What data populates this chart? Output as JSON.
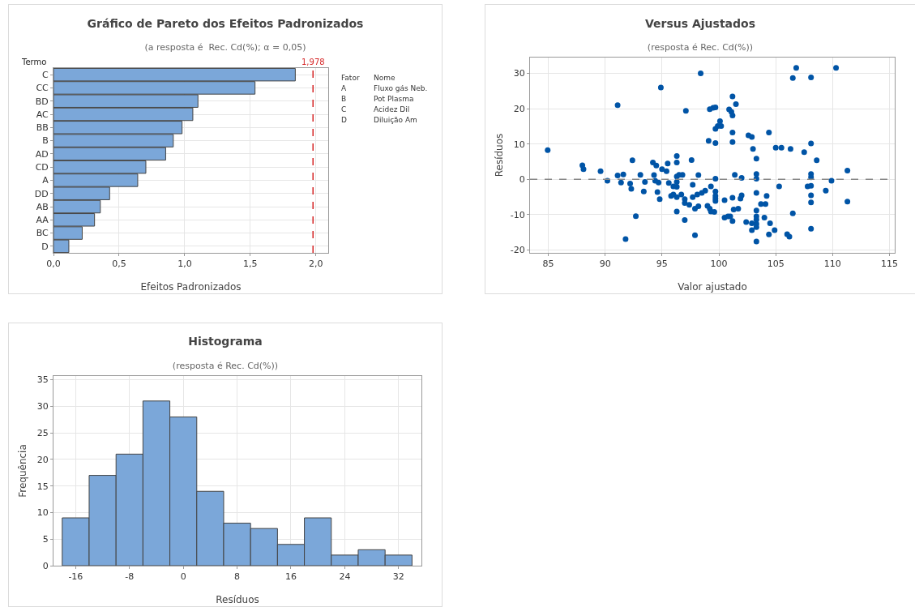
{
  "chart_data": [
    {
      "type": "bar",
      "orientation": "horizontal",
      "title": "Gráfico de Pareto dos Efeitos Padronizados",
      "subtitle": "(a resposta é  Rec. Cd(%); α = 0,05)",
      "xlabel": "Efeitos Padronizados",
      "ylabel": "Termo",
      "categories": [
        "C",
        "CC",
        "BD",
        "AC",
        "BB",
        "B",
        "AD",
        "CD",
        "A",
        "DD",
        "AB",
        "AA",
        "BC",
        "D"
      ],
      "values": [
        1.843,
        1.536,
        1.101,
        1.062,
        0.98,
        0.913,
        0.855,
        0.704,
        0.642,
        0.428,
        0.357,
        0.313,
        0.219,
        0.117
      ],
      "color": "#7ba7d9",
      "xlim": [
        0,
        2.094
      ],
      "xticks": [
        {
          "value": 0,
          "label": "0,0"
        },
        {
          "value": 0.5,
          "label": "0,5"
        },
        {
          "value": 1,
          "label": "1,0"
        },
        {
          "value": 1.5,
          "label": "1,5"
        },
        {
          "value": 2,
          "label": "2,0"
        }
      ],
      "grid": true,
      "ref_lines": [
        {
          "axis": "x",
          "value": 1.978,
          "label": "1,978",
          "color": "#d62728",
          "line_style": "dashed"
        }
      ],
      "annotations": [
        "Fator",
        "Nome",
        "A",
        "Fluxo gás Neb.",
        "B",
        "Pot Plasma",
        "C",
        "Acidez Dil",
        "D",
        "Diluição Am"
      ]
    },
    {
      "type": "scatter",
      "title": "Versus Ajustados",
      "subtitle": "(resposta é Rec. Cd(%))",
      "xlabel": "Valor ajustado",
      "ylabel": "Resíduos",
      "color": "#0054a6",
      "marker": "circle",
      "grid": true,
      "xlim": [
        83.4,
        115.46
      ],
      "xticks": [
        85,
        90,
        95,
        100,
        105,
        110,
        115
      ],
      "ylim": [
        -20.8,
        34.5
      ],
      "yticks": [
        -20,
        -10,
        0,
        10,
        20,
        30
      ],
      "ref_lines": [
        {
          "axis": "y",
          "value": 0,
          "color": "#888888",
          "line_style": "dashed"
        }
      ],
      "x": [
        84.95,
        88.0,
        88.1,
        89.6,
        90.2,
        91.1,
        91.1,
        91.6,
        91.4,
        91.8,
        92.2,
        92.3,
        92.4,
        92.7,
        93.1,
        93.4,
        93.5,
        94.2,
        94.5,
        94.3,
        94.4,
        94.7,
        94.6,
        94.8,
        94.9,
        95.0,
        95.4,
        95.5,
        95.6,
        95.8,
        96.0,
        96.0,
        96.3,
        96.3,
        96.3,
        96.3,
        96.3,
        96.3,
        96.3,
        96.5,
        96.8,
        96.7,
        97.0,
        97.0,
        97.0,
        97.1,
        97.4,
        97.6,
        97.7,
        97.7,
        97.9,
        97.9,
        98.1,
        98.4,
        98.2,
        98.2,
        98.8,
        98.5,
        99.0,
        99.2,
        99.3,
        99.6,
        99.3,
        99.1,
        99.2,
        99.5,
        99.7,
        99.7,
        99.9,
        100.1,
        100.2,
        99.7,
        99.7,
        99.7,
        99.7,
        99.7,
        99.7,
        100.5,
        100.5,
        100.8,
        101.0,
        101.2,
        101.2,
        100.9,
        101.1,
        101.2,
        101.2,
        101.5,
        101.2,
        101.2,
        101.4,
        101.3,
        101.7,
        101.9,
        102.0,
        102.0,
        102.4,
        102.6,
        102.9,
        102.9,
        103.0,
        102.9,
        103.3,
        103.3,
        103.3,
        103.3,
        103.3,
        103.3,
        103.3,
        103.3,
        103.3,
        103.3,
        103.7,
        104.1,
        104.2,
        104.0,
        104.4,
        104.4,
        104.5,
        104.9,
        105.0,
        105.3,
        105.5,
        106.3,
        106.0,
        106.2,
        106.5,
        106.8,
        106.5,
        107.5,
        107.8,
        108.1,
        108.1,
        108.1,
        108.1,
        108.1,
        108.1,
        108.1,
        108.1,
        108.6,
        109.4,
        109.9,
        110.3,
        111.3,
        111.3
      ],
      "values": [
        8.3,
        4.0,
        2.9,
        2.3,
        -0.4,
        21.0,
        1.1,
        1.4,
        -0.9,
        -16.9,
        -1.2,
        -2.7,
        5.4,
        -10.4,
        1.3,
        -3.4,
        -0.7,
        4.8,
        3.9,
        1.2,
        -0.4,
        -0.9,
        -3.6,
        -5.6,
        26.0,
        2.9,
        2.3,
        4.5,
        -1.0,
        -4.7,
        -4.3,
        -2.0,
        6.6,
        4.8,
        0.8,
        -0.7,
        -2.1,
        -5.0,
        -9.1,
        1.3,
        1.3,
        -4.3,
        -5.6,
        -6.7,
        -11.5,
        19.4,
        -7.2,
        5.5,
        -5.0,
        -1.5,
        -8.3,
        -15.8,
        -4.3,
        30.0,
        1.2,
        -7.6,
        -3.2,
        -3.8,
        -7.5,
        -8.3,
        -9.1,
        -9.2,
        -2.0,
        10.9,
        19.9,
        20.3,
        20.4,
        14.3,
        15.1,
        16.5,
        15.1,
        10.3,
        0.2,
        -3.4,
        -4.7,
        -5.4,
        -6.1,
        -5.9,
        -10.8,
        -10.5,
        -10.5,
        -11.8,
        -5.2,
        19.8,
        19.1,
        18.1,
        23.5,
        21.3,
        13.3,
        10.6,
        1.3,
        -8.5,
        -8.3,
        -5.4,
        -4.5,
        0.4,
        -12.1,
        12.5,
        12.0,
        -14.4,
        8.6,
        -12.4,
        5.9,
        1.5,
        0.2,
        -3.8,
        -8.8,
        -10.5,
        -11.4,
        -12.6,
        -13.5,
        -17.6,
        -7.0,
        -7.0,
        -4.7,
        -10.8,
        13.3,
        -15.6,
        -12.4,
        -14.4,
        9.0,
        -2.0,
        9.0,
        8.6,
        -15.5,
        -16.2,
        28.7,
        31.6,
        -9.6,
        7.7,
        -2.0,
        -1.8,
        28.9,
        10.2,
        1.5,
        0.6,
        -4.5,
        -6.5,
        -14.0,
        5.4,
        -3.2,
        -0.4,
        31.6,
        2.5,
        -6.3
      ]
    },
    {
      "type": "histogram",
      "title": "Histograma",
      "subtitle": "(resposta é Rec. Cd(%))",
      "xlabel": "Resíduos",
      "ylabel": "Frequência",
      "color": "#7ba7d9",
      "grid": true,
      "bins": [
        -18,
        -14,
        -10,
        -6,
        -2,
        2,
        6,
        10,
        14,
        18,
        22,
        26,
        30,
        34
      ],
      "values": [
        9,
        17,
        21,
        31,
        28,
        14,
        8,
        7,
        4,
        9,
        2,
        3,
        2
      ],
      "xlim": [
        -19.3,
        35.4
      ],
      "xticks": [
        -16,
        -8,
        0,
        8,
        16,
        24,
        32
      ],
      "ylim": [
        0,
        35.7
      ],
      "yticks": [
        0,
        5,
        10,
        15,
        20,
        25,
        30,
        35
      ]
    }
  ]
}
